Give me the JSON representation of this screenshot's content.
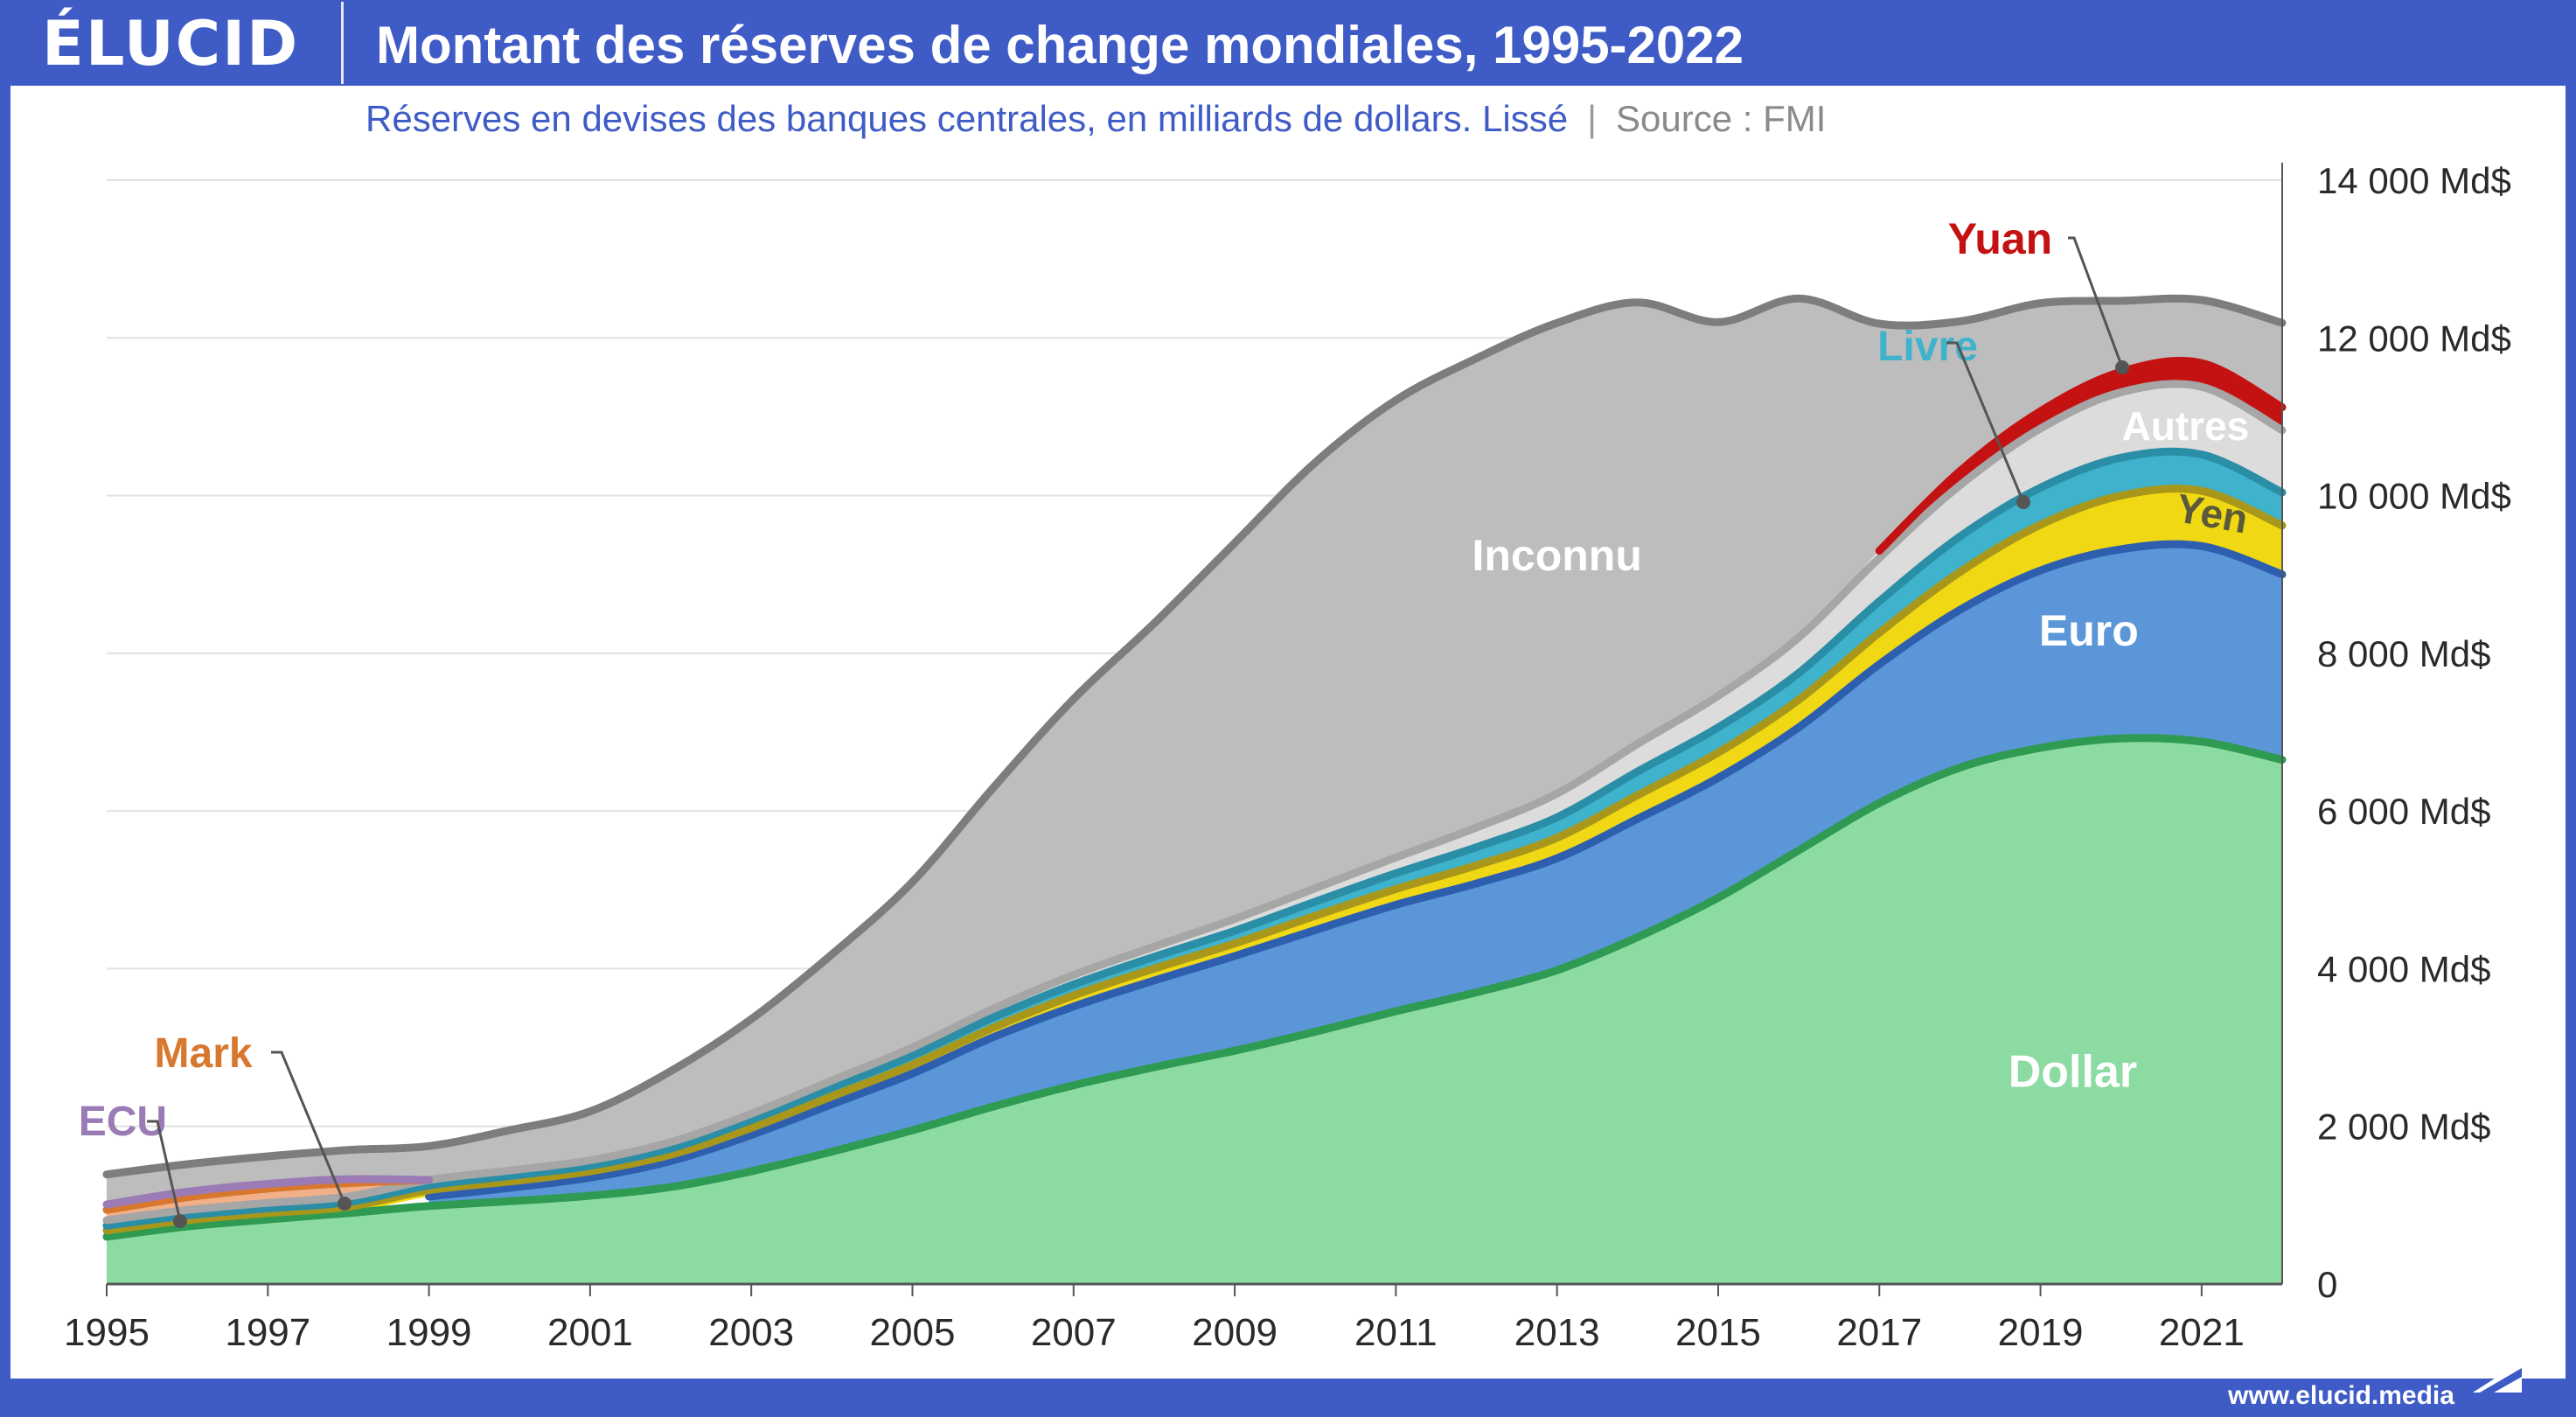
{
  "header": {
    "brand": "ÉLUCID",
    "title": "Montant des réserves de change mondiales, 1995-2022",
    "subtitle": "Réserves en devises des banques centrales, en milliards de dollars. Lissé",
    "separator": "|",
    "source": "Source : FMI"
  },
  "footer": {
    "url": "www.elucid.media"
  },
  "colors": {
    "dollar": "#8cdba3",
    "dollar_line": "#2e9a52",
    "euro": "#5b96d9",
    "euro_line": "#2e5fae",
    "yen": "#f0d814",
    "yen_line": "#a8971a",
    "livre": "#3fb2cc",
    "livre_line": "#2a8ea6",
    "autres": "#dcdcdc",
    "autres_line": "#a6a6a6",
    "yuan": "#c41212",
    "inconnu": "#bdbdbd",
    "inconnu_line": "#7d7d7d",
    "mark": "#f2b088",
    "mark_line": "#d8782e",
    "ecu": "#c9aed8",
    "ecu_line": "#9a7bb5",
    "grid": "#e2e2e2",
    "label_text": "#ffffff"
  },
  "chart_data": {
    "type": "area",
    "stacked": true,
    "x": [
      1995,
      1996,
      1997,
      1998,
      1999,
      2000,
      2001,
      2002,
      2003,
      2004,
      2005,
      2006,
      2007,
      2008,
      2009,
      2010,
      2011,
      2012,
      2013,
      2014,
      2015,
      2016,
      2017,
      2018,
      2019,
      2020,
      2021,
      2022
    ],
    "x_ticks": [
      "1995",
      "1997",
      "1999",
      "2001",
      "2003",
      "2005",
      "2007",
      "2009",
      "2011",
      "2013",
      "2015",
      "2017",
      "2019",
      "2021"
    ],
    "y_ticks": [
      "0",
      "2 000 Md$",
      "4 000 Md$",
      "6 000 Md$",
      "8 000 Md$",
      "10 000 Md$",
      "12 000 Md$",
      "14 000 Md$"
    ],
    "ylim": [
      0,
      14000
    ],
    "grid": true,
    "series": [
      {
        "name": "Dollar",
        "key": "dollar",
        "values": [
          600,
          730,
          820,
          900,
          990,
          1050,
          1120,
          1230,
          1430,
          1680,
          1950,
          2250,
          2520,
          2750,
          2960,
          3200,
          3460,
          3700,
          3980,
          4400,
          4900,
          5500,
          6100,
          6550,
          6800,
          6920,
          6880,
          6650
        ]
      },
      {
        "name": "Euro",
        "key": "euro",
        "values": [
          0,
          0,
          0,
          0,
          120,
          170,
          230,
          330,
          460,
          600,
          720,
          880,
          1000,
          1100,
          1200,
          1290,
          1350,
          1380,
          1420,
          1500,
          1520,
          1560,
          1760,
          2000,
          2250,
          2400,
          2480,
          2350
        ]
      },
      {
        "name": "Yen",
        "key": "yen",
        "values": [
          80,
          80,
          80,
          80,
          80,
          80,
          80,
          80,
          90,
          100,
          110,
          120,
          140,
          150,
          160,
          180,
          200,
          230,
          260,
          300,
          320,
          350,
          400,
          480,
          580,
          680,
          700,
          620
        ]
      },
      {
        "name": "Livre",
        "key": "livre",
        "values": [
          60,
          60,
          60,
          60,
          60,
          70,
          70,
          80,
          100,
          110,
          120,
          130,
          140,
          150,
          160,
          180,
          200,
          230,
          260,
          300,
          320,
          340,
          400,
          450,
          470,
          480,
          460,
          420
        ]
      },
      {
        "name": "Autres",
        "key": "autres",
        "values": [
          70,
          70,
          70,
          70,
          70,
          70,
          70,
          80,
          80,
          90,
          100,
          110,
          120,
          130,
          150,
          170,
          200,
          250,
          300,
          350,
          400,
          450,
          550,
          650,
          750,
          830,
          860,
          790
        ]
      },
      {
        "name": "Yuan",
        "key": "yuan",
        "values": [
          0,
          0,
          0,
          0,
          0,
          0,
          0,
          0,
          0,
          0,
          0,
          0,
          0,
          0,
          0,
          0,
          0,
          0,
          0,
          0,
          0,
          0,
          90,
          180,
          220,
          260,
          300,
          290
        ]
      },
      {
        "name": "Mark",
        "key": "mark",
        "values": [
          130,
          160,
          180,
          170,
          0,
          0,
          0,
          0,
          0,
          0,
          0,
          0,
          0,
          0,
          0,
          0,
          0,
          0,
          0,
          0,
          0,
          0,
          0,
          0,
          0,
          0,
          0,
          0
        ]
      },
      {
        "name": "ECU",
        "key": "ecu",
        "values": [
          70,
          70,
          60,
          50,
          0,
          0,
          0,
          0,
          0,
          0,
          0,
          0,
          0,
          0,
          0,
          0,
          0,
          0,
          0,
          0,
          0,
          0,
          0,
          0,
          0,
          0,
          0,
          0
        ]
      },
      {
        "name": "Inconnu",
        "key": "inconnu",
        "values": [
          380,
          350,
          350,
          370,
          430,
          510,
          620,
          900,
          1200,
          1600,
          2100,
          2800,
          3500,
          4100,
          4770,
          5400,
          5800,
          5950,
          5970,
          5600,
          4740,
          4300,
          2880,
          1900,
          1370,
          900,
          800,
          1070
        ]
      }
    ],
    "labels": [
      {
        "series": "Inconnu",
        "text": "Inconnu"
      },
      {
        "series": "Euro",
        "text": "Euro"
      },
      {
        "series": "Dollar",
        "text": "Dollar"
      },
      {
        "series": "Autres",
        "text": "Autres"
      },
      {
        "series": "Yen",
        "text": "Yen"
      },
      {
        "series": "Yuan",
        "text": "Yuan"
      },
      {
        "series": "Livre",
        "text": "Livre"
      },
      {
        "series": "Mark",
        "text": "Mark"
      },
      {
        "series": "ECU",
        "text": "ECU"
      }
    ]
  }
}
